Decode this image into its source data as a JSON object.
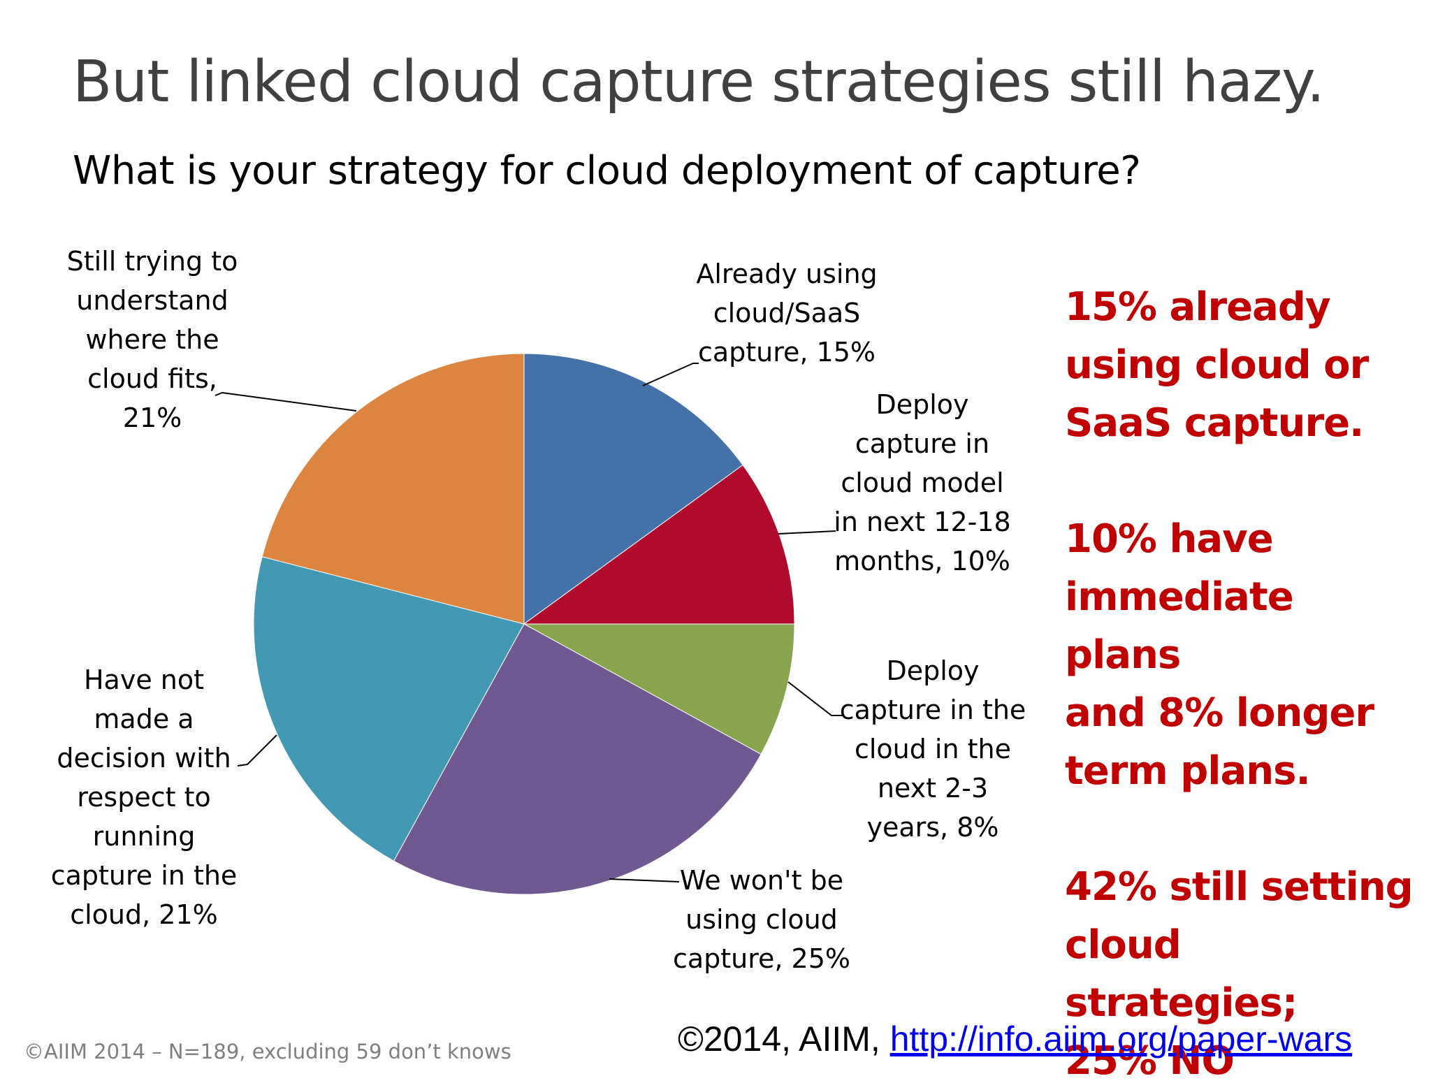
{
  "slide": {
    "title": "But linked cloud capture strategies still hazy.",
    "question": "What is your strategy for cloud deployment of capture?",
    "source_note": "©AIIM 2014 – N=189, excluding 59 don’t knows",
    "credit": "©2014, AIIM,",
    "credit_link": "http://info.aiim.org/paper-wars"
  },
  "takeaways": [
    "15% already\nusing cloud or\nSaaS capture.",
    "10% have\nimmediate plans\nand 8% longer\nterm plans.",
    "42% still setting\ncloud strategies;\n25% NO"
  ],
  "chart_data": {
    "type": "pie",
    "title": "",
    "categories": [
      "Already using cloud/SaaS capture",
      "Deploy capture in cloud model in next 12-18 months",
      "Deploy capture in the cloud in the next 2-3 years",
      "We won't be using cloud capture",
      "Have not made a decision with respect to running capture in the cloud",
      "Still trying to understand where the cloud fits"
    ],
    "values": [
      15,
      10,
      8,
      25,
      21,
      21
    ],
    "data_labels": [
      "Already using\ncloud/SaaS\ncapture, 15%",
      "Deploy\ncapture in\ncloud model\nin next 12-18\nmonths, 10%",
      "Deploy\ncapture in the\ncloud in the\nnext 2-3\nyears, 8%",
      "We won't be\nusing cloud\ncapture, 25%",
      "Have not\nmade a\ndecision with\nrespect to\nrunning\ncapture in the\ncloud, 21%",
      "Still trying to\nunderstand\nwhere the\ncloud fits,\n21%"
    ],
    "colors": [
      "#4472a8",
      "#b00b2d",
      "#88a54e",
      "#705890",
      "#4399b3",
      "#db8541"
    ],
    "start": "12 o'clock",
    "direction": "clockwise",
    "legend": "none"
  }
}
